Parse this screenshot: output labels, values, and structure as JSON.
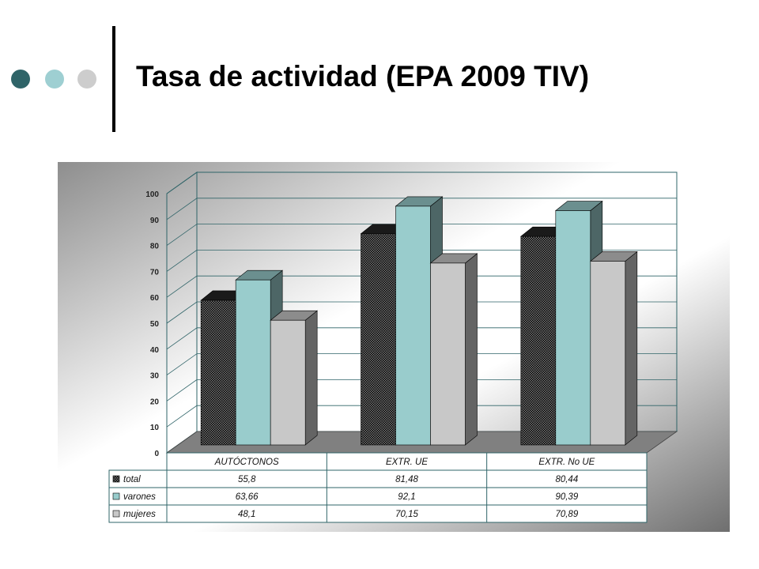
{
  "slide": {
    "title": "Tasa de actividad (EPA 2009 TIV)",
    "accent_colors": [
      "#2f6468",
      "#9ecfd2",
      "#cdcdcd"
    ]
  },
  "chart_data": {
    "type": "bar",
    "style": "3d-clustered-column-with-data-table",
    "title": "",
    "xlabel": "",
    "ylabel": "",
    "ylim": [
      0,
      100
    ],
    "yticks": [
      0,
      10,
      20,
      30,
      40,
      50,
      60,
      70,
      80,
      90,
      100
    ],
    "grid": true,
    "categories": [
      "AUTÓCTONOS",
      "EXTR. UE",
      "EXTR. No UE"
    ],
    "series": [
      {
        "name": "total",
        "values": [
          55.8,
          81.48,
          80.44
        ],
        "labels": [
          "55,8",
          "81,48",
          "80,44"
        ],
        "color": "#111111",
        "pattern": "checker"
      },
      {
        "name": "varones",
        "values": [
          63.66,
          92.1,
          90.39
        ],
        "labels": [
          "63,66",
          "92,1",
          "90,39"
        ],
        "color": "#99cccc",
        "pattern": "solid"
      },
      {
        "name": "mujeres",
        "values": [
          48.1,
          70.15,
          70.89
        ],
        "labels": [
          "48,1",
          "70,15",
          "70,89"
        ],
        "color": "#c8c8c8",
        "pattern": "solid"
      }
    ],
    "legend": "data-table-left"
  }
}
